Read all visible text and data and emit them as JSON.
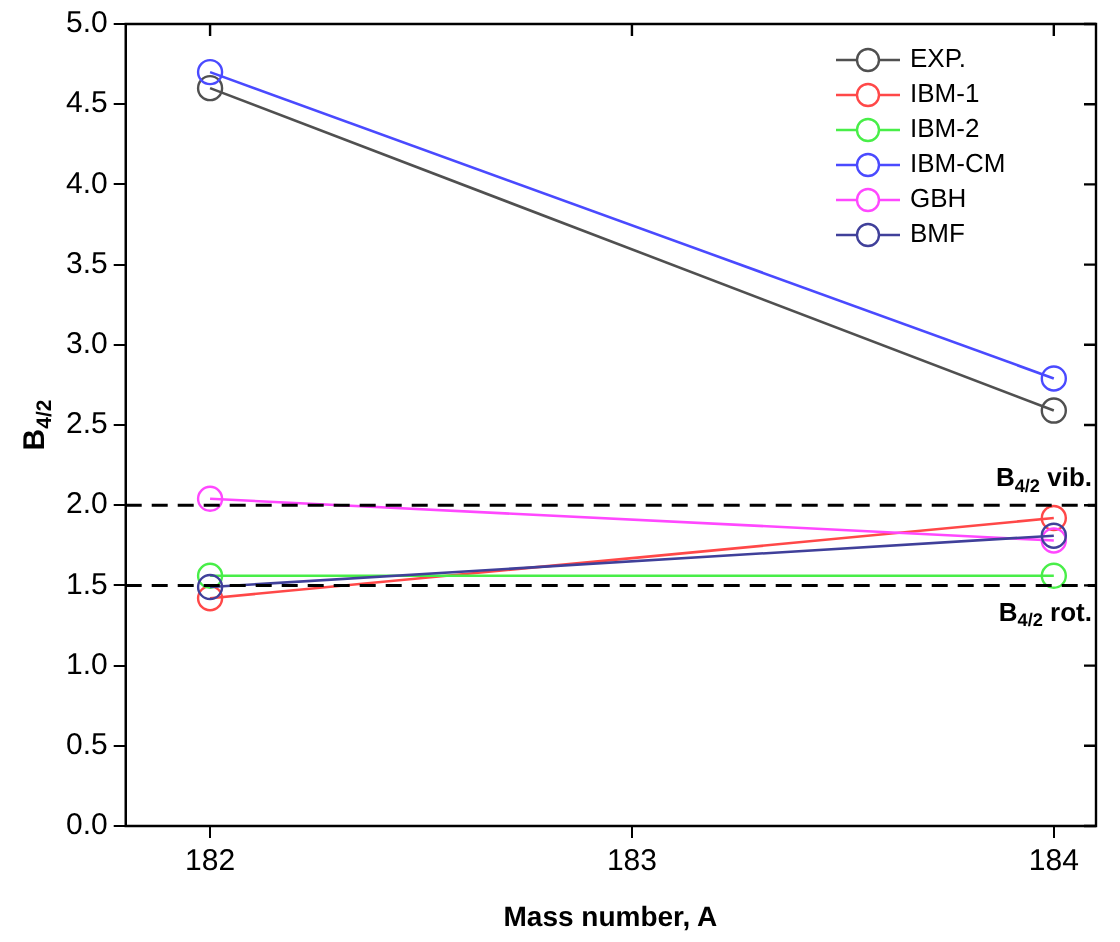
{
  "chart_data": {
    "type": "line",
    "xlabel": "Mass number, A",
    "ylabel": "B$_{4/2}$",
    "x": [
      182,
      184
    ],
    "series": [
      {
        "name": "EXP.",
        "color": "#505050",
        "values": [
          4.6,
          2.59
        ]
      },
      {
        "name": "IBM-1",
        "color": "#ff4848",
        "values": [
          1.42,
          1.92
        ]
      },
      {
        "name": "IBM-2",
        "color": "#48ee48",
        "values": [
          1.56,
          1.56
        ]
      },
      {
        "name": "IBM-CM",
        "color": "#4a4aff",
        "values": [
          4.7,
          2.79
        ]
      },
      {
        "name": "GBH",
        "color": "#ff48ff",
        "values": [
          2.04,
          1.78
        ]
      },
      {
        "name": "BMF",
        "color": "#40409a",
        "values": [
          1.49,
          1.81
        ]
      }
    ],
    "xlim": [
      181.8,
      184.1
    ],
    "xticks": [
      182,
      183,
      184
    ],
    "ylim": [
      0,
      5
    ],
    "yticks": [
      {
        "value": 0,
        "label": "0.0"
      },
      0.5,
      {
        "value": 1,
        "label": "1.0"
      },
      1.5,
      {
        "value": 2,
        "label": "2.0"
      },
      2.5,
      {
        "value": 3,
        "label": "3.0"
      },
      3.5,
      {
        "value": 4,
        "label": "4.0"
      },
      4.5,
      {
        "value": 5,
        "label": "5.0"
      }
    ],
    "ref_lines": [
      {
        "axis": "y",
        "value": 2,
        "label": "B$_{4/2}$ vib.",
        "color": "#000000",
        "line_style": "dashed"
      },
      {
        "axis": "y",
        "value": 1.5,
        "label": "B$_{4/2}$ rot.",
        "color": "#000000",
        "line_style": "dashed"
      }
    ],
    "marker": "circle",
    "line_style": "solid",
    "legend": "top right",
    "grid": false
  }
}
